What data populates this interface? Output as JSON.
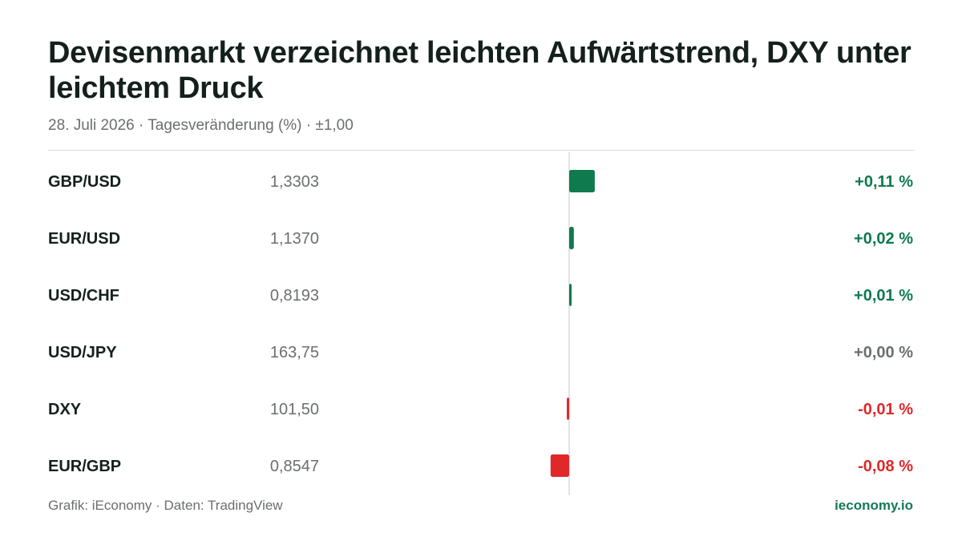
{
  "header": {
    "title": "Devisenmarkt verzeichnet leichten Aufwärtstrend, DXY unter leichtem Druck",
    "subtitle": "28. Juli 2026 · Tagesveränderung (%) · ±1,00"
  },
  "footer": {
    "source": "Grafik: iEconomy · Daten: TradingView",
    "brand": "ieconomy.io"
  },
  "colors": {
    "positive": "#0f7a4e",
    "negative": "#e0282a",
    "neutral": "#6b6f6d",
    "label": "#14201c",
    "price": "#6b6f6d",
    "axis": "#d8dad9"
  },
  "chart_data": {
    "type": "bar",
    "orientation": "horizontal",
    "baseline": 0,
    "xlim": [
      -1,
      1
    ],
    "categories": [
      "GBP/USD",
      "EUR/USD",
      "USD/CHF",
      "USD/JPY",
      "DXY",
      "EUR/GBP"
    ],
    "prices": [
      "1,3303",
      "1,1370",
      "0,8193",
      "163,75",
      "101,50",
      "0,8547"
    ],
    "values": [
      0.11,
      0.02,
      0.01,
      0.0,
      -0.01,
      -0.08
    ],
    "value_labels": [
      "+0,11 %",
      "+0,02 %",
      "+0,01 %",
      "+0,00 %",
      "-0,01 %",
      "-0,08 %"
    ]
  }
}
